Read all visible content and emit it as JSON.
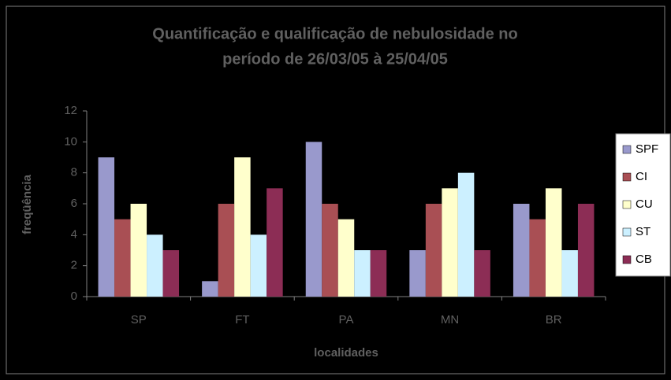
{
  "chart_data": {
    "type": "bar",
    "title": [
      "Quantificação e qualificação de nebulosidade no",
      "período de 26/03/05 à 25/04/05"
    ],
    "x_label": "localidades",
    "y_label": "freqüência",
    "categories": [
      "SP",
      "FT",
      "PA",
      "MN",
      "BR"
    ],
    "series": [
      {
        "name": "SPF",
        "color": "#9999cc",
        "values": [
          9,
          1,
          10,
          3,
          6
        ]
      },
      {
        "name": "CI",
        "color": "#a94f54",
        "values": [
          5,
          6,
          6,
          6,
          5
        ]
      },
      {
        "name": "CU",
        "color": "#ffffcc",
        "values": [
          6,
          9,
          5,
          7,
          7
        ]
      },
      {
        "name": "ST",
        "color": "#ccf0ff",
        "values": [
          4,
          4,
          3,
          8,
          3
        ]
      },
      {
        "name": "CB",
        "color": "#8c2d55",
        "values": [
          3,
          7,
          3,
          3,
          6
        ]
      }
    ],
    "ylim": [
      0,
      12
    ],
    "yticks": [
      0,
      2,
      4,
      6,
      8,
      10,
      12
    ],
    "legend": "right"
  }
}
